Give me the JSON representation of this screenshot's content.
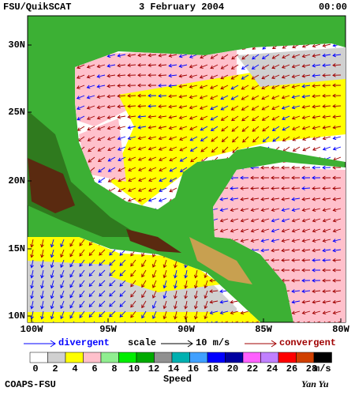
{
  "header": {
    "title": "FSU/QuikSCAT",
    "date": "3 February 2004",
    "time": "00:00"
  },
  "latitude_labels": [
    "30N",
    "25N",
    "20N",
    "15N",
    "10N"
  ],
  "longitude_labels": [
    "100W",
    "95W",
    "90W",
    "85W",
    "80W"
  ],
  "legend": {
    "divergent": "divergent",
    "scale": "scale",
    "scale_value": "10 m/s",
    "convergent": "convergent"
  },
  "colorbar": {
    "labels": [
      0,
      2,
      4,
      6,
      8,
      10,
      12,
      14,
      16,
      18,
      20,
      22,
      24,
      26,
      28
    ],
    "unit": "m/s",
    "title": "Speed",
    "colors": [
      "#ffffff",
      "#d0d0d0",
      "#ffff00",
      "#ffc0cb",
      "#90ee90",
      "#00ee00",
      "#00aa00",
      "#909090",
      "#00b0b0",
      "#40a0ff",
      "#0000ff",
      "#0000a0",
      "#ff60ff",
      "#c080ff",
      "#ff0000",
      "#d04000",
      "#000000"
    ]
  },
  "footer": {
    "left": "COAPS-FSU",
    "right": "Yan Yu"
  }
}
